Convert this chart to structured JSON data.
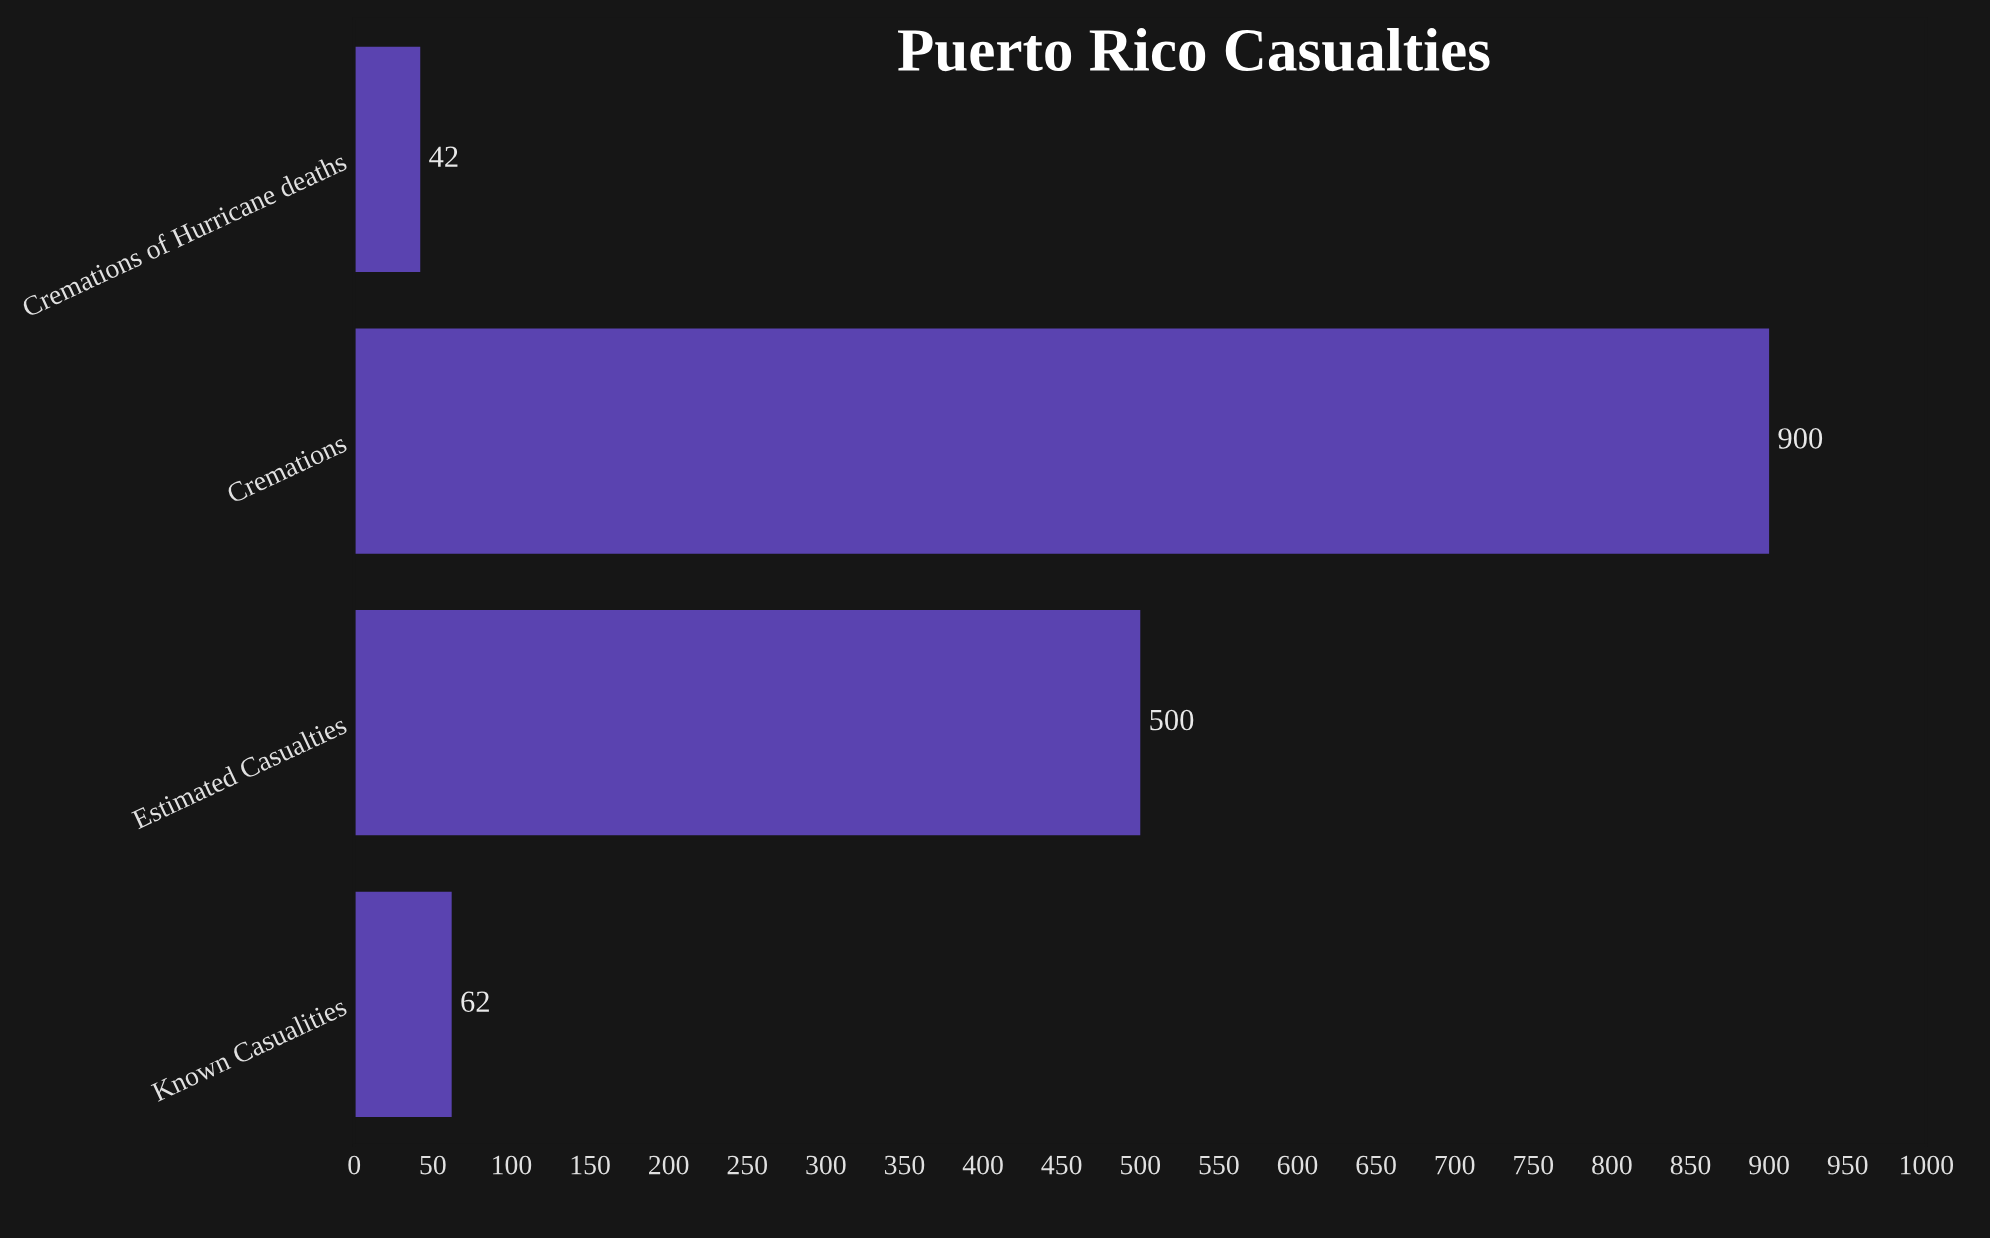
{
  "chart_data": {
    "type": "bar",
    "orientation": "horizontal",
    "title": "Puerto Rico Casualties",
    "categories": [
      "Cremations of Hurricane deaths",
      "Cremations",
      "Estimated Casualties",
      "Known Casualities"
    ],
    "values": [
      42,
      900,
      500,
      62
    ],
    "color": "#5a43b0",
    "data_labels": true,
    "grid": false,
    "xlim": [
      0,
      1000
    ],
    "xticks": [
      0,
      50,
      100,
      150,
      200,
      250,
      300,
      350,
      400,
      450,
      500,
      550,
      600,
      650,
      700,
      750,
      800,
      850,
      900,
      950,
      1000
    ]
  }
}
